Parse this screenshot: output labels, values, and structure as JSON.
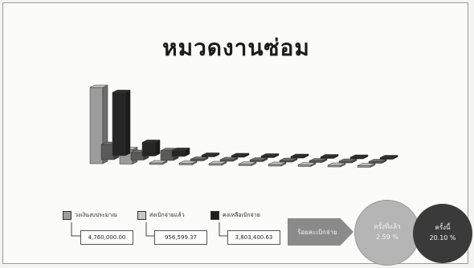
{
  "title": "หมวดงานซ่อม",
  "chart_data": {
    "type": "bar",
    "title": "หมวดงานซ่อม",
    "series": [
      {
        "name": "วงเงินงบประมาณ",
        "color": "#9c9c9c",
        "total": "4,760,000.00",
        "values": [
          100,
          19,
          0,
          0,
          0,
          0,
          0,
          0,
          0,
          0
        ]
      },
      {
        "name": "ส่งเบิกจ่ายแล้ว",
        "color": "#5a5a5a",
        "total": "956,599.37",
        "values": [
          20,
          10,
          13,
          0,
          0,
          0,
          0,
          0,
          0,
          0
        ]
      },
      {
        "name": "คงเหลือเบิกจ่าย",
        "color": "#262626",
        "total": "3,803,400.63",
        "values": [
          83,
          18,
          8,
          1,
          1,
          1,
          1,
          1,
          1,
          1
        ]
      }
    ],
    "categories": [
      "",
      "",
      "",
      "",
      "",
      "",
      "",
      "",
      "",
      ""
    ],
    "legend": "bottom-left"
  },
  "summary": {
    "label": "ร้อยละเบิกจ่าย",
    "previous": {
      "label": "ครั้งที่แล้ว",
      "value": "2.59 %"
    },
    "current": {
      "label": "ครั้งนี้",
      "value": "20.10 %"
    }
  }
}
